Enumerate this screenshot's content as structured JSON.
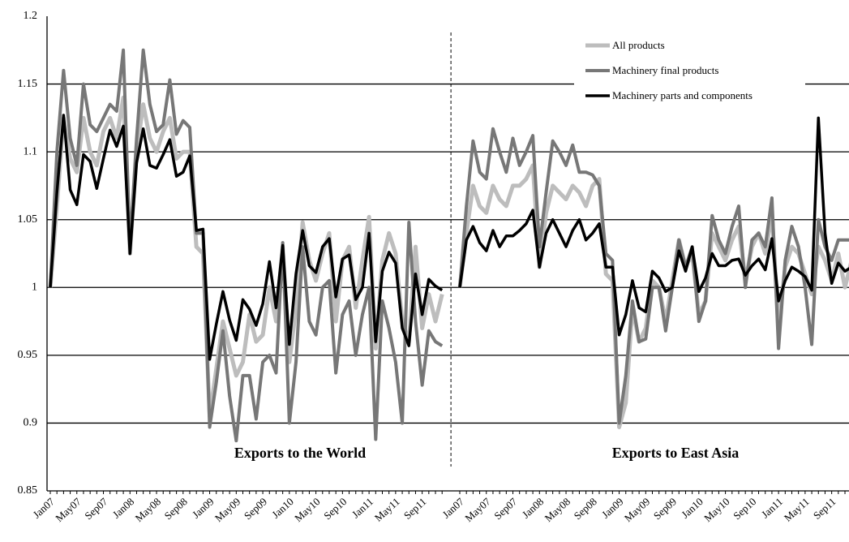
{
  "chart_data": {
    "type": "line",
    "categories": [
      "Jan07",
      null,
      null,
      null,
      "May07",
      null,
      null,
      null,
      "Sep07",
      null,
      null,
      null,
      "Jan08",
      null,
      null,
      null,
      "May08",
      null,
      null,
      null,
      "Sep08",
      null,
      null,
      null,
      "Jan09",
      null,
      null,
      null,
      "May09",
      null,
      null,
      null,
      "Sep09",
      null,
      null,
      null,
      "Jan10",
      null,
      null,
      null,
      "May10",
      null,
      null,
      null,
      "Sep10",
      null,
      null,
      null,
      "Jan11",
      null,
      null,
      null,
      "May11",
      null,
      null,
      null,
      "Sep11",
      null,
      null,
      null
    ],
    "series": [
      {
        "name": "All products",
        "color": "#bdbdbd"
      },
      {
        "name": "Machinery final products",
        "color": "#777777"
      },
      {
        "name": "Machinery parts and components",
        "color": "#000000"
      }
    ],
    "panels": [
      {
        "title": "Exports to the World",
        "values": [
          [
            1.0,
            1.06,
            1.125,
            1.095,
            1.085,
            1.125,
            1.1,
            1.09,
            1.115,
            1.125,
            1.11,
            1.14,
            1.025,
            1.1,
            1.135,
            1.11,
            1.1,
            1.115,
            1.125,
            1.095,
            1.1,
            1.1,
            1.03,
            1.025,
            0.905,
            0.94,
            0.975,
            0.955,
            0.935,
            0.945,
            0.98,
            0.96,
            0.965,
            1.0,
            0.975,
            1.03,
            0.945,
            0.985,
            1.048,
            1.02,
            1.005,
            1.025,
            1.04,
            0.975,
            1.02,
            1.03,
            0.985,
            1.02,
            1.052,
            0.955,
            1.02,
            1.04,
            1.025,
            0.975,
            0.96,
            1.03,
            0.97,
            0.995,
            0.975,
            0.995
          ],
          [
            1.0,
            1.1,
            1.16,
            1.11,
            1.09,
            1.15,
            1.12,
            1.115,
            1.125,
            1.135,
            1.13,
            1.175,
            1.03,
            1.11,
            1.175,
            1.135,
            1.115,
            1.12,
            1.153,
            1.113,
            1.123,
            1.118,
            1.04,
            1.04,
            0.897,
            0.93,
            0.968,
            0.92,
            0.887,
            0.935,
            0.935,
            0.903,
            0.945,
            0.95,
            0.937,
            1.033,
            0.9,
            0.945,
            1.03,
            0.975,
            0.965,
            1.0,
            1.005,
            0.937,
            0.98,
            0.99,
            0.95,
            0.98,
            1.0,
            0.888,
            0.99,
            0.97,
            0.945,
            0.9,
            1.048,
            0.975,
            0.928,
            0.968,
            0.96,
            0.957
          ],
          [
            1.0,
            1.07,
            1.127,
            1.072,
            1.061,
            1.098,
            1.093,
            1.073,
            1.095,
            1.116,
            1.104,
            1.119,
            1.025,
            1.092,
            1.117,
            1.09,
            1.088,
            1.098,
            1.109,
            1.082,
            1.085,
            1.097,
            1.042,
            1.043,
            0.947,
            0.973,
            0.997,
            0.976,
            0.961,
            0.991,
            0.984,
            0.972,
            0.988,
            1.019,
            0.985,
            1.031,
            0.958,
            1.01,
            1.042,
            1.016,
            1.011,
            1.03,
            1.036,
            0.993,
            1.021,
            1.024,
            0.991,
            1.0,
            1.04,
            0.96,
            1.012,
            1.026,
            1.018,
            0.97,
            0.957,
            1.01,
            0.98,
            1.006,
            1.001,
            0.998
          ]
        ]
      },
      {
        "title": "Exports to East Asia",
        "values": [
          [
            1.0,
            1.04,
            1.075,
            1.06,
            1.055,
            1.075,
            1.065,
            1.06,
            1.075,
            1.075,
            1.08,
            1.09,
            1.015,
            1.055,
            1.075,
            1.07,
            1.065,
            1.075,
            1.07,
            1.06,
            1.075,
            1.08,
            1.01,
            1.005,
            0.897,
            0.915,
            0.985,
            0.96,
            0.97,
            1.005,
            1.0,
            0.975,
            1.005,
            1.035,
            1.015,
            1.025,
            0.98,
            0.99,
            1.04,
            1.03,
            1.02,
            1.035,
            1.045,
            1.005,
            1.03,
            1.04,
            1.025,
            1.055,
            0.97,
            1.015,
            1.03,
            1.025,
            1.01,
            0.995,
            1.03,
            1.02,
            1.005,
            1.025,
            1.0,
            1.02
          ],
          [
            1.0,
            1.06,
            1.108,
            1.085,
            1.08,
            1.117,
            1.1,
            1.085,
            1.11,
            1.09,
            1.1,
            1.112,
            1.03,
            1.07,
            1.108,
            1.1,
            1.09,
            1.105,
            1.085,
            1.085,
            1.083,
            1.075,
            1.025,
            1.02,
            0.9,
            0.935,
            0.99,
            0.96,
            0.962,
            1.0,
            1.0,
            0.968,
            1.0,
            1.035,
            1.015,
            1.03,
            0.975,
            0.99,
            1.053,
            1.035,
            1.025,
            1.045,
            1.06,
            1.0,
            1.035,
            1.04,
            1.03,
            1.066,
            0.955,
            1.02,
            1.045,
            1.03,
            1.0,
            0.958,
            1.05,
            1.03,
            1.02,
            1.035,
            1.035,
            1.035
          ],
          [
            1.0,
            1.035,
            1.045,
            1.033,
            1.027,
            1.042,
            1.03,
            1.038,
            1.038,
            1.042,
            1.047,
            1.057,
            1.015,
            1.04,
            1.05,
            1.04,
            1.03,
            1.042,
            1.05,
            1.035,
            1.04,
            1.047,
            1.015,
            1.015,
            0.965,
            0.98,
            1.005,
            0.985,
            0.982,
            1.012,
            1.007,
            0.997,
            1.0,
            1.027,
            1.012,
            1.03,
            0.997,
            1.007,
            1.025,
            1.016,
            1.016,
            1.02,
            1.021,
            1.009,
            1.016,
            1.021,
            1.013,
            1.036,
            0.99,
            1.005,
            1.015,
            1.012,
            1.008,
            0.998,
            1.125,
            1.04,
            1.003,
            1.018,
            1.012,
            1.015
          ]
        ]
      }
    ],
    "ylim": [
      0.85,
      1.2
    ],
    "yticks": [
      0.85,
      0.9,
      0.95,
      1,
      1.05,
      1.1,
      1.15,
      1.2
    ],
    "grid": true
  }
}
